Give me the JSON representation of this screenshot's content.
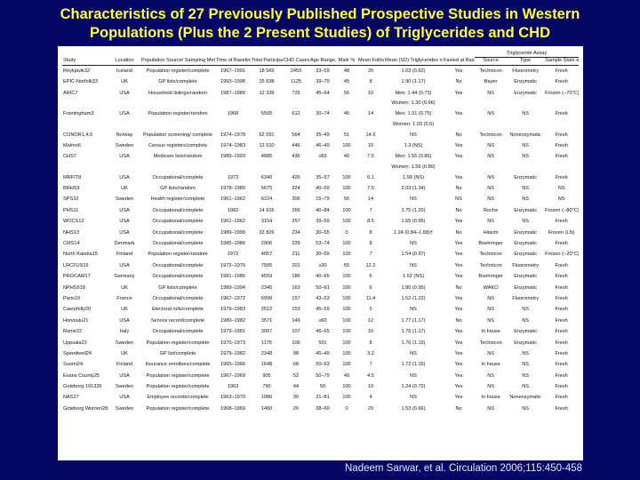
{
  "title_line1": "Characteristics of 27 Previously Published Prospective Studies in Western",
  "title_line2": "Populations (Plus the 2 Present Studies) of Triglycerides and CHD",
  "caption": "Nadeem Sarwar, et al. Circulation 2006;115:450-458",
  "table": {
    "assay_group": "Triglyceride Assay",
    "headers": [
      "Study",
      "Location",
      "Population Source/ Sampling Method*",
      "Time of Baseline Survey",
      "Total Participants, n",
      "CHD Cases, n",
      "Age Range, y",
      "Male %",
      "Mean Follow-Up, y",
      "Mean (SD) Triglycerides of Controls, mmol/L",
      "Fasted at Baseline",
      "Source",
      "Type",
      "Sample State at Analysis"
    ],
    "rows": [
      [
        "Reykjavik32",
        "Iceland",
        "Population register/complete",
        "1967–1991",
        "18 569",
        "2459",
        "33–59",
        "48",
        "20",
        "1.03 (0.62)",
        "Yes",
        "Technicon",
        "Fluorometry",
        "Fresh"
      ],
      [
        "EPIC-Norfolk33",
        "UK",
        "GP lists/complete",
        "1993–1998",
        "25 638",
        "1125",
        "39–79",
        "45",
        "8",
        "1.90 (1.17)",
        "No",
        "Bayer",
        "Enzymatic",
        "Fresh"
      ],
      [
        "ARIC7",
        "USA",
        "Household listings/random",
        "1987–1989",
        "12 339",
        "725",
        "45–64",
        "56",
        "10",
        "Men: 1.44 (0.73)",
        "Yes",
        "NS",
        "Enzymatic",
        "Frozen (−70°C)"
      ],
      [
        "",
        "",
        "",
        "",
        "",
        "",
        "",
        "",
        "",
        "Women: 1.30 (0.66)",
        "",
        "",
        "",
        ""
      ],
      [
        "Framingham3",
        "USA",
        "Population register/random",
        "1968",
        "5505",
        "612",
        "30–74",
        "46",
        "14",
        "Men: 1.31 (0.75)",
        "Yes",
        "NS",
        "NS",
        "Fresh"
      ],
      [
        "",
        "",
        "",
        "",
        "",
        "",
        "",
        "",
        "",
        "Women: 1.03 (0.6)",
        "",
        "",
        "",
        ""
      ],
      [
        "CONOR1,4,5",
        "Norway",
        "Population screening/ complete",
        "1974–1978",
        "62 091",
        "564",
        "35–49",
        "51",
        "14.6",
        "NS",
        "No",
        "Technicon",
        "Nonenzymatic",
        "Fresh"
      ],
      [
        "Malmo6",
        "Sweden",
        "Census registers/complete",
        "1974–1983",
        "12 510",
        "446",
        "46–49",
        "100",
        "10",
        "1.3 (NS)",
        "Yes",
        "NS",
        "NS",
        "Fresh"
      ],
      [
        "CHS7",
        "USA",
        "Medicare lists/random",
        "1989–1993",
        "4885",
        "436",
        "≥65",
        "40",
        "7.5",
        "Men: 1.55 (0.86)",
        "Yes",
        "NS",
        "NS",
        "Fresh"
      ],
      [
        "",
        "",
        "",
        "",
        "",
        "",
        "",
        "",
        "",
        "Women: 1.56 (0.80)",
        "",
        "",
        "",
        ""
      ],
      [
        "MRFIT8",
        "USA",
        "Occupational/complete",
        "1973",
        "6340",
        "426",
        "35–57",
        "100",
        "6.1",
        "1.99 (NS)",
        "Yes",
        "NS",
        "Enzymatic",
        "Fresh"
      ],
      [
        "BRHS9",
        "UK",
        "GP lists/random",
        "1978–1980",
        "5675",
        "324",
        "40–59",
        "100",
        "7.5",
        "2.03 (1.34)",
        "No",
        "NS",
        "NS",
        "NS"
      ],
      [
        "SPS10",
        "Sweden",
        "Health register/complete",
        "1961–1962",
        "6224",
        "306",
        "15–79",
        "56",
        "14",
        "NS",
        "NS",
        "NS",
        "NS",
        "NS"
      ],
      [
        "PHS11",
        "USA",
        "Occupational/complete",
        "1982",
        "14 916",
        "266",
        "40–84",
        "100",
        "7",
        "1.75 (1.20)",
        "No",
        "Roche",
        "Enzymatic",
        "Frozen (−80°C)"
      ],
      [
        "WOCS12",
        "USA",
        "Occupational/complete",
        "1961–1962",
        "3154",
        "257",
        "39–59",
        "100",
        "8.5",
        "1.65 (0.95)",
        "Yes",
        "NS",
        "NS",
        "Fresh"
      ],
      [
        "NHS13",
        "USA",
        "Occupational/complete",
        "1989–1990",
        "32 826",
        "234",
        "30–55",
        "0",
        "8",
        "1.24 (0.84–1.68)†",
        "No",
        "Hitachi",
        "Enzymatic",
        "Frozen (LN)"
      ],
      [
        "CMS14",
        "Denmark",
        "Occupational/complete",
        "1985–1986",
        "2906",
        "229",
        "53–74",
        "100",
        "8",
        "NS",
        "Yes",
        "Boehringer",
        "Enzymatic",
        "Fresh"
      ],
      [
        "North Karelia15",
        "Finland",
        "Population register/random",
        "1972",
        "4057",
        "211",
        "30–59",
        "100",
        "7",
        "1.54 (0.97)",
        "Yes",
        "Technicon",
        "Enzymatic",
        "Frozen (−20°C)"
      ],
      [
        "LRCFUS16",
        "USA",
        "Occupational/complete",
        "1972–1976",
        "7505",
        "201",
        "≥30",
        "55",
        "12.2",
        "NS",
        "Yes",
        "Technicon",
        "Fluorometry",
        "Fresh"
      ],
      [
        "PROCAM17",
        "Germany",
        "Occupational/complete",
        "1981–1986",
        "4559",
        "186",
        "40–65",
        "100",
        "6",
        "1.52 (NS)",
        "Yes",
        "Boehringer",
        "Enzymatic",
        "Fresh"
      ],
      [
        "NPHSII18",
        "UK",
        "GP lists/complete",
        "1989–1994",
        "2345",
        "163",
        "50–61",
        "100",
        "6",
        "1.80 (0.95)",
        "No",
        "WAKO",
        "Enzymatic",
        "Fresh"
      ],
      [
        "Paris19",
        "France",
        "Occupational/complete",
        "1967–1972",
        "6999",
        "157",
        "43–53",
        "100",
        "11.4",
        "1.52 (1.22)",
        "Yes",
        "NS",
        "Fluorometry",
        "Fresh"
      ],
      [
        "Caerphilly20",
        "UK",
        "Electoral rolls/complete",
        "1979–1983",
        "2512",
        "153",
        "45–59",
        "100",
        "5",
        "NS",
        "Yes",
        "NS",
        "NS",
        "Fresh"
      ],
      [
        "Honolulu21",
        "USA",
        "Service record/complete",
        "1980–1982",
        "3571",
        "149",
        "≥60",
        "100",
        "12",
        "1.77 (1.17)",
        "No",
        "NS",
        "NS",
        "Fresh"
      ],
      [
        "Rome22",
        "Italy",
        "Occupational/complete",
        "1979–1981",
        "3007",
        "107",
        "46–65",
        "100",
        "10",
        "1.76 (1.17)",
        "Yes",
        "In house",
        "Enzymatic",
        "Fresh"
      ],
      [
        "Uppsala23",
        "Sweden",
        "Population register/complete",
        "1970–1973",
        "1175",
        "106",
        "50‡",
        "100",
        "8",
        "1.76 (1.19)",
        "Yes",
        "Technicon",
        "Enzymatic",
        "Fresh"
      ],
      [
        "Speedwell24",
        "UK",
        "GP list/complete",
        "1979–1982",
        "2348",
        "98",
        "45–49",
        "100",
        "3.2",
        "NS",
        "Yes",
        "NS",
        "NS",
        "Fresh"
      ],
      [
        "Suomi24",
        "Finland",
        "Insurance enrollees/complete",
        "1965–1966",
        "1648",
        "68",
        "50–53",
        "100",
        "7",
        "1.72 (1.16)",
        "Yes",
        "In house",
        "NS",
        "Fresh"
      ],
      [
        "Evans County25",
        "USA",
        "Population register/complete",
        "1967–1969",
        "905",
        "52",
        "50–79",
        "49",
        "4.5",
        "NS",
        "Yes",
        "NS",
        "NS",
        "Fresh"
      ],
      [
        "Goteborg 191326",
        "Sweden",
        "Population register/complete",
        "1963",
        "790",
        "44",
        "50",
        "100",
        "10",
        "1.24 (0.72)",
        "Yes",
        "NS",
        "NS",
        "Fresh"
      ],
      [
        "NAS27",
        "USA",
        "Employee records/complete",
        "1963–1970",
        "1086",
        "30",
        "21–81",
        "100",
        "4",
        "NS",
        "Yes",
        "In house",
        "Nonenzymatic",
        "Fresh"
      ],
      [
        "Goteborg Women28",
        "Sweden",
        "Population register/complete",
        "1968–1969",
        "1450",
        "26",
        "38–60",
        "0",
        "20",
        "1.53 (0.66)",
        "No",
        "NS",
        "NS",
        "Fresh"
      ]
    ]
  }
}
